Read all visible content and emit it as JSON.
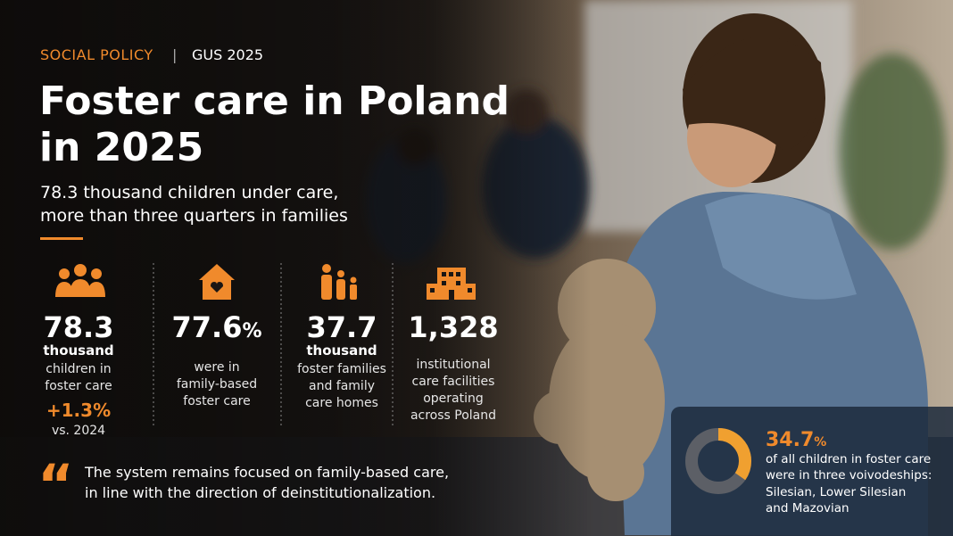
{
  "header": {
    "kicker": "SOCIAL POLICY",
    "separator": "|",
    "source": "GUS 2025",
    "title": [
      "Foster care in Poland",
      "in 2025"
    ],
    "subtitle": [
      "78.3 thousand children under care,",
      "more than three quarters in families"
    ]
  },
  "stats": [
    {
      "number": "78.3",
      "unit": "thousand",
      "description": [
        "children in",
        "foster care"
      ],
      "change": "+1.3%",
      "change_note": "vs. 2024"
    },
    {
      "number": "77.6",
      "suffix": "%",
      "description": [
        "were in",
        "family-based",
        "foster care"
      ]
    },
    {
      "number": "37.7",
      "unit": "thousand",
      "description": [
        "foster families",
        "and family",
        "care homes"
      ]
    },
    {
      "number": "1,328",
      "description": [
        "institutional",
        "care facilities",
        "operating",
        "across Poland"
      ]
    }
  ],
  "quote": {
    "mark": "“",
    "lines": [
      "The system remains focused on family-based care,",
      "in line with the direction of deinstitutionalization."
    ]
  },
  "callout": {
    "value": 34.7,
    "unit": "%",
    "lines": [
      "of all children in foster care",
      "were in three voivodeships:",
      "Silesian, Lower Silesian",
      "and Mazovian"
    ]
  }
}
